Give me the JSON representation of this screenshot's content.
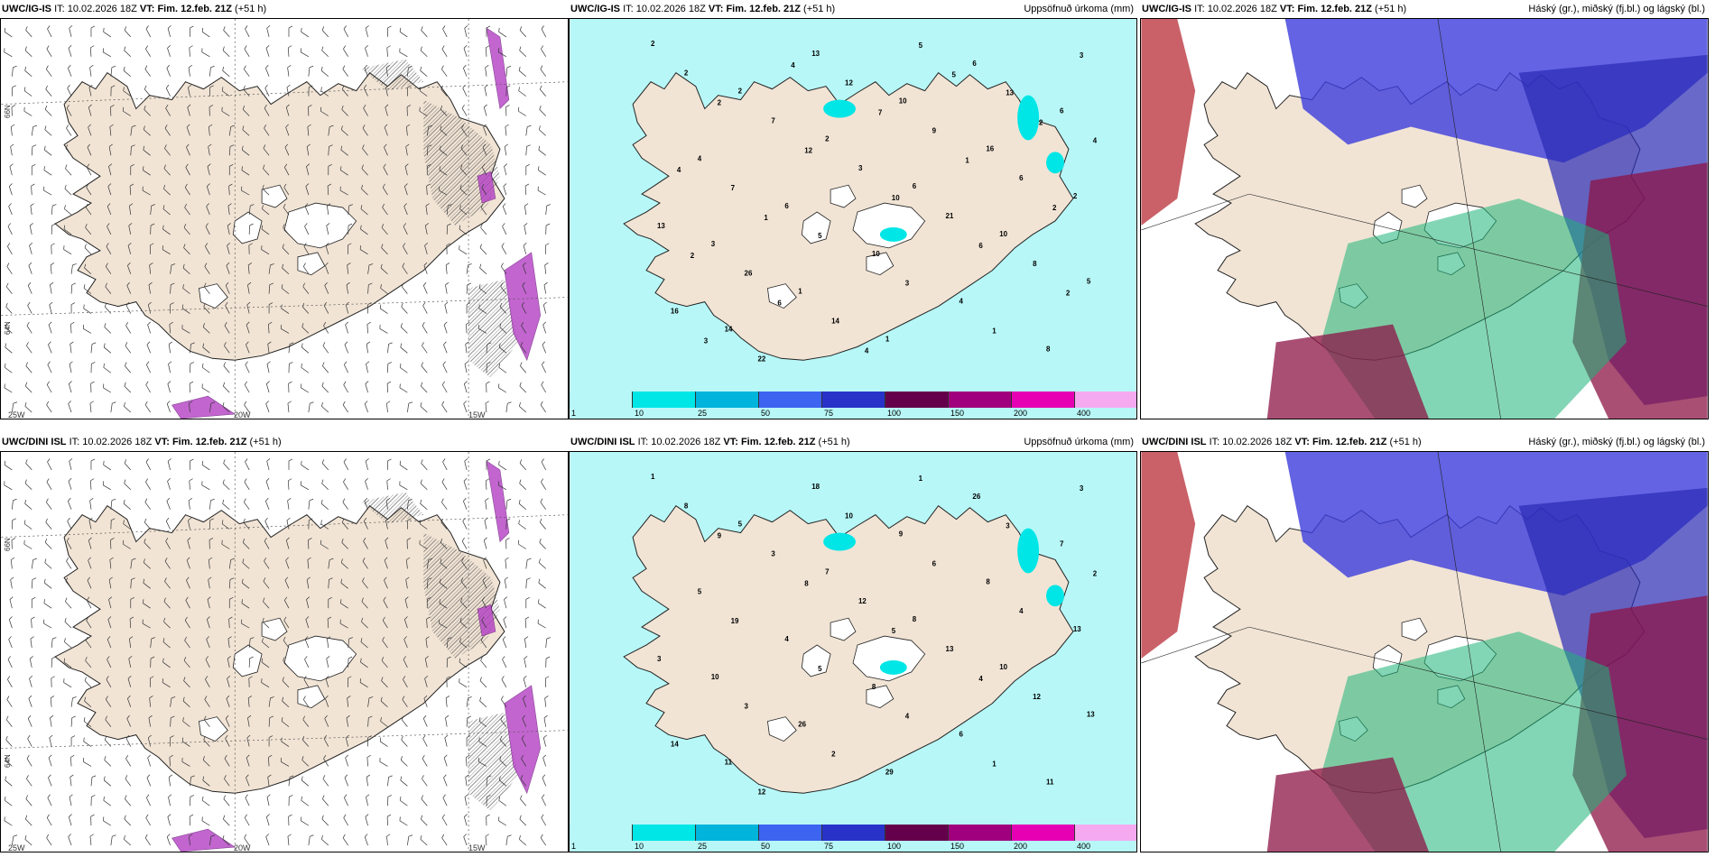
{
  "colors": {
    "land": "#f1e4d5",
    "sea_cyan": "#b7f7f7",
    "coast": "#222222",
    "purple": "#b33fc4"
  },
  "panels": [
    {
      "id": "p1",
      "model": "UWC/IG-IS",
      "it_label": "IT:",
      "it": "10.02.2026 18Z",
      "vt_label": "VT:",
      "vt": "Fim. 12.feb. 21Z",
      "lead": "(+51 h)",
      "right": "",
      "kind": "wind"
    },
    {
      "id": "p2",
      "model": "UWC/IG-IS",
      "it_label": "IT:",
      "it": "10.02.2026 18Z",
      "vt_label": "VT:",
      "vt": "Fim. 12.feb. 21Z",
      "lead": "(+51 h)",
      "right": "Uppsöfnuð úrkoma (mm)",
      "kind": "precip"
    },
    {
      "id": "p3",
      "model": "UWC/IG-IS",
      "it_label": "IT:",
      "it": "10.02.2026 18Z",
      "vt_label": "VT:",
      "vt": "Fim. 12.feb. 21Z",
      "lead": "(+51 h)",
      "right": "Háský (gr.), miðský (fj.bl.) og lágský (bl.)",
      "kind": "cloud"
    },
    {
      "id": "p4",
      "model": "UWC/DINI ISL",
      "it_label": "IT:",
      "it": "10.02.2026 18Z",
      "vt_label": "VT:",
      "vt": "Fim. 12.feb. 21Z",
      "lead": "(+51 h)",
      "right": "",
      "kind": "wind"
    },
    {
      "id": "p5",
      "model": "UWC/DINI ISL",
      "it_label": "IT:",
      "it": "10.02.2026 18Z",
      "vt_label": "VT:",
      "vt": "Fim. 12.feb. 21Z",
      "lead": "(+51 h)",
      "right": "Uppsöfnuð úrkoma (mm)",
      "kind": "precip"
    },
    {
      "id": "p6",
      "model": "UWC/DINI ISL",
      "it_label": "IT:",
      "it": "10.02.2026 18Z",
      "vt_label": "VT:",
      "vt": "Fim. 12.feb. 21Z",
      "lead": "(+51 h)",
      "right": "Háský (gr.), miðský (fj.bl.) og lágský (bl.)",
      "kind": "cloud"
    }
  ],
  "wind_map": {
    "lon_labels": [
      "25W",
      "20W",
      "15W"
    ],
    "lat_labels": [
      "66N",
      "64N"
    ]
  },
  "precip_legend": {
    "labels": [
      "1",
      "10",
      "25",
      "50",
      "75",
      "100",
      "150",
      "200",
      "400"
    ],
    "colors": [
      "#b7f7f7",
      "#00e6e6",
      "#00b4dc",
      "#3c64f0",
      "#2832c8",
      "#64004b",
      "#a0007d",
      "#e600b4",
      "#f5aaf0"
    ]
  },
  "precip_values_top": [
    "2",
    "2",
    "2",
    "6",
    "10",
    "5",
    "14",
    "13",
    "10",
    "16",
    "2",
    "3",
    "1",
    "1",
    "6",
    "6",
    "4",
    "6",
    "10",
    "4",
    "8",
    "2",
    "7",
    "3",
    "21",
    "8",
    "16",
    "22",
    "12",
    "9",
    "6",
    "13",
    "26",
    "14",
    "5",
    "13",
    "4",
    "7",
    "5",
    "3",
    "1",
    "3",
    "2",
    "12",
    "10",
    "6",
    "2",
    "3",
    "4",
    "7",
    "1",
    "2",
    "2",
    "6",
    "4",
    "5",
    "2",
    "4",
    "1"
  ],
  "precip_values_bottom": [
    "1",
    "5",
    "7",
    "8",
    "10",
    "13",
    "11",
    "18",
    "9",
    "8",
    "13",
    "10",
    "26",
    "29",
    "26",
    "7",
    "5",
    "4",
    "8",
    "6",
    "11",
    "8",
    "3",
    "12",
    "13",
    "12",
    "14",
    "12",
    "10",
    "6",
    "4",
    "3",
    "3",
    "2",
    "1",
    "3",
    "2",
    "19",
    "5",
    "4",
    "1",
    "3",
    "9",
    "8",
    "5",
    "4"
  ]
}
